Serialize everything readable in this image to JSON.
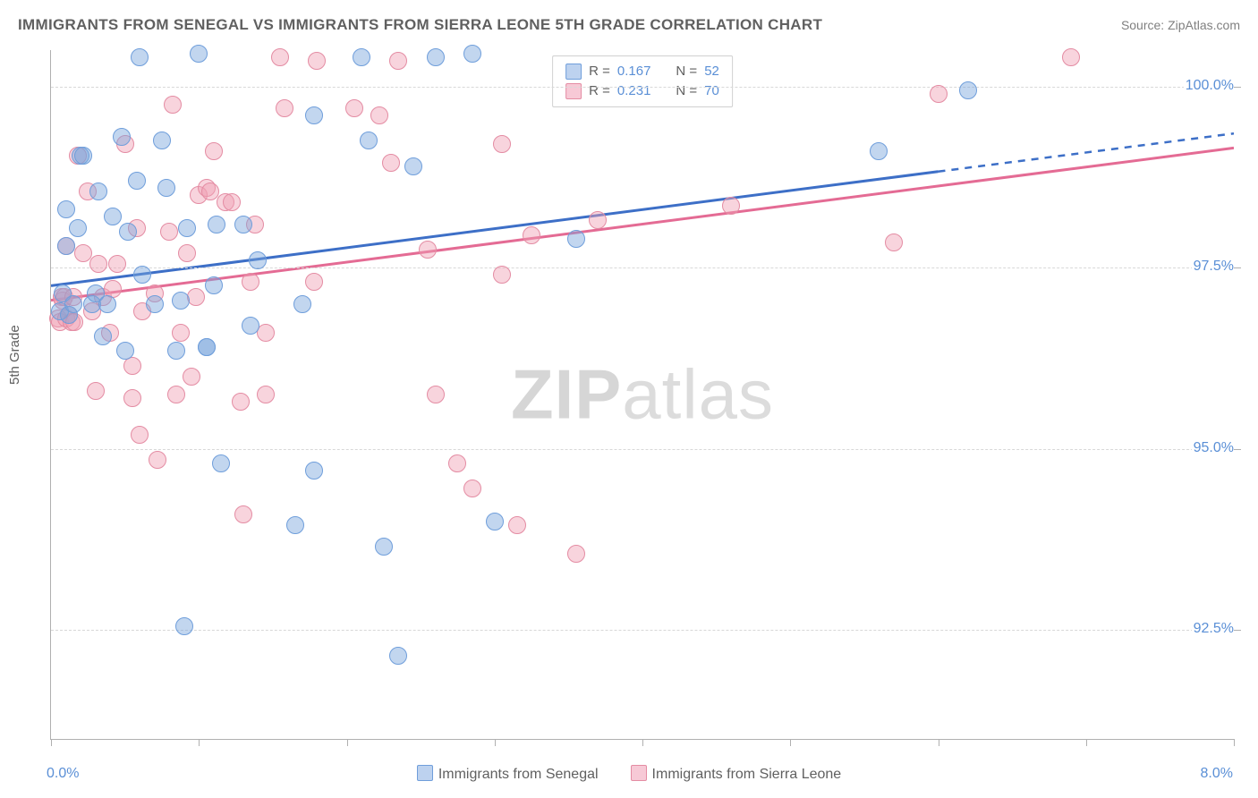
{
  "header": {
    "title": "IMMIGRANTS FROM SENEGAL VS IMMIGRANTS FROM SIERRA LEONE 5TH GRADE CORRELATION CHART",
    "source": "Source: ZipAtlas.com"
  },
  "ylabel": "5th Grade",
  "watermark": {
    "bold": "ZIP",
    "rest": "atlas"
  },
  "axes": {
    "xlim": [
      0.0,
      8.0
    ],
    "ylim": [
      91.0,
      100.5
    ],
    "xticks_minor": [
      0,
      1,
      2,
      3,
      4,
      5,
      6,
      7,
      8
    ],
    "xticks_labeled": [
      {
        "v": 0.0,
        "label": "0.0%"
      },
      {
        "v": 8.0,
        "label": "8.0%"
      }
    ],
    "yticks": [
      {
        "v": 92.5,
        "label": "92.5%"
      },
      {
        "v": 95.0,
        "label": "95.0%"
      },
      {
        "v": 97.5,
        "label": "97.5%"
      },
      {
        "v": 100.0,
        "label": "100.0%"
      }
    ],
    "grid_color": "#d8d8d8",
    "axis_color": "#b0b0b0",
    "tick_label_color": "#5a8fd6"
  },
  "series": [
    {
      "key": "senegal",
      "name": "Immigrants from Senegal",
      "color_fill": "rgba(120,165,220,0.45)",
      "color_stroke": "#6f9edb",
      "swatch_fill": "#bdd2ef",
      "swatch_border": "#6f9edb",
      "trend_color": "#3d6fc7",
      "marker_radius": 10,
      "R": 0.167,
      "N": 52,
      "trend": {
        "y_at_xmin": 97.25,
        "y_at_xmax": 99.35,
        "solid_until_x": 6.0
      },
      "points": [
        [
          0.06,
          96.9
        ],
        [
          0.08,
          97.15
        ],
        [
          0.1,
          97.8
        ],
        [
          0.1,
          98.3
        ],
        [
          0.12,
          96.85
        ],
        [
          0.15,
          97.0
        ],
        [
          0.18,
          98.05
        ],
        [
          0.2,
          99.05
        ],
        [
          0.22,
          99.05
        ],
        [
          0.28,
          97.0
        ],
        [
          0.3,
          97.15
        ],
        [
          0.32,
          98.55
        ],
        [
          0.35,
          96.55
        ],
        [
          0.38,
          97.0
        ],
        [
          0.42,
          98.2
        ],
        [
          0.48,
          99.3
        ],
        [
          0.5,
          96.35
        ],
        [
          0.52,
          98.0
        ],
        [
          0.58,
          98.7
        ],
        [
          0.6,
          100.4
        ],
        [
          0.62,
          97.4
        ],
        [
          0.7,
          97.0
        ],
        [
          0.75,
          99.25
        ],
        [
          0.78,
          98.6
        ],
        [
          0.85,
          96.35
        ],
        [
          0.88,
          97.05
        ],
        [
          0.9,
          92.55
        ],
        [
          0.92,
          98.05
        ],
        [
          1.0,
          100.45
        ],
        [
          1.05,
          96.4
        ],
        [
          1.05,
          96.4
        ],
        [
          1.1,
          97.25
        ],
        [
          1.12,
          98.1
        ],
        [
          1.15,
          94.8
        ],
        [
          1.3,
          98.1
        ],
        [
          1.35,
          96.7
        ],
        [
          1.4,
          97.6
        ],
        [
          1.65,
          93.95
        ],
        [
          1.7,
          97.0
        ],
        [
          1.78,
          94.7
        ],
        [
          1.78,
          99.6
        ],
        [
          2.1,
          100.4
        ],
        [
          2.15,
          99.25
        ],
        [
          2.25,
          93.65
        ],
        [
          2.35,
          92.15
        ],
        [
          2.45,
          98.9
        ],
        [
          2.6,
          100.4
        ],
        [
          2.85,
          100.45
        ],
        [
          3.0,
          94.0
        ],
        [
          3.55,
          97.9
        ],
        [
          5.6,
          99.1
        ],
        [
          6.2,
          99.95
        ]
      ]
    },
    {
      "key": "sierra_leone",
      "name": "Immigrants from Sierra Leone",
      "color_fill": "rgba(240,160,180,0.45)",
      "color_stroke": "#e48ca3",
      "swatch_fill": "#f7c9d6",
      "swatch_border": "#e48ca3",
      "trend_color": "#e46b94",
      "marker_radius": 10,
      "R": 0.231,
      "N": 70,
      "trend": {
        "y_at_xmin": 97.05,
        "y_at_xmax": 99.15,
        "solid_until_x": 8.0
      },
      "points": [
        [
          0.05,
          96.8
        ],
        [
          0.06,
          96.75
        ],
        [
          0.07,
          97.1
        ],
        [
          0.08,
          97.05
        ],
        [
          0.09,
          97.1
        ],
        [
          0.1,
          97.8
        ],
        [
          0.1,
          96.8
        ],
        [
          0.12,
          96.85
        ],
        [
          0.14,
          96.75
        ],
        [
          0.15,
          97.1
        ],
        [
          0.16,
          96.75
        ],
        [
          0.18,
          99.05
        ],
        [
          0.22,
          97.7
        ],
        [
          0.25,
          98.55
        ],
        [
          0.28,
          96.9
        ],
        [
          0.3,
          95.8
        ],
        [
          0.32,
          97.55
        ],
        [
          0.35,
          97.1
        ],
        [
          0.4,
          96.6
        ],
        [
          0.42,
          97.2
        ],
        [
          0.45,
          97.55
        ],
        [
          0.5,
          99.2
        ],
        [
          0.55,
          96.15
        ],
        [
          0.55,
          95.7
        ],
        [
          0.58,
          98.05
        ],
        [
          0.6,
          95.2
        ],
        [
          0.62,
          96.9
        ],
        [
          0.7,
          97.15
        ],
        [
          0.72,
          94.85
        ],
        [
          0.8,
          98.0
        ],
        [
          0.82,
          99.75
        ],
        [
          0.85,
          95.75
        ],
        [
          0.88,
          96.6
        ],
        [
          0.92,
          97.7
        ],
        [
          0.95,
          96.0
        ],
        [
          0.98,
          97.1
        ],
        [
          1.0,
          98.5
        ],
        [
          1.05,
          98.6
        ],
        [
          1.08,
          98.55
        ],
        [
          1.1,
          99.1
        ],
        [
          1.18,
          98.4
        ],
        [
          1.22,
          98.4
        ],
        [
          1.28,
          95.65
        ],
        [
          1.3,
          94.1
        ],
        [
          1.35,
          97.3
        ],
        [
          1.38,
          98.1
        ],
        [
          1.45,
          96.6
        ],
        [
          1.45,
          95.75
        ],
        [
          1.55,
          100.4
        ],
        [
          1.58,
          99.7
        ],
        [
          1.78,
          97.3
        ],
        [
          1.8,
          100.35
        ],
        [
          2.05,
          99.7
        ],
        [
          2.22,
          99.6
        ],
        [
          2.3,
          98.95
        ],
        [
          2.35,
          100.35
        ],
        [
          2.55,
          97.75
        ],
        [
          2.6,
          95.75
        ],
        [
          2.75,
          94.8
        ],
        [
          2.85,
          94.45
        ],
        [
          3.05,
          97.4
        ],
        [
          3.05,
          99.2
        ],
        [
          3.15,
          93.95
        ],
        [
          3.25,
          97.95
        ],
        [
          3.55,
          93.55
        ],
        [
          3.7,
          98.15
        ],
        [
          4.6,
          98.35
        ],
        [
          5.7,
          97.85
        ],
        [
          6.0,
          99.9
        ],
        [
          6.9,
          100.4
        ]
      ]
    }
  ],
  "legend_top": {
    "r_label": "R =",
    "n_label": "N ="
  }
}
